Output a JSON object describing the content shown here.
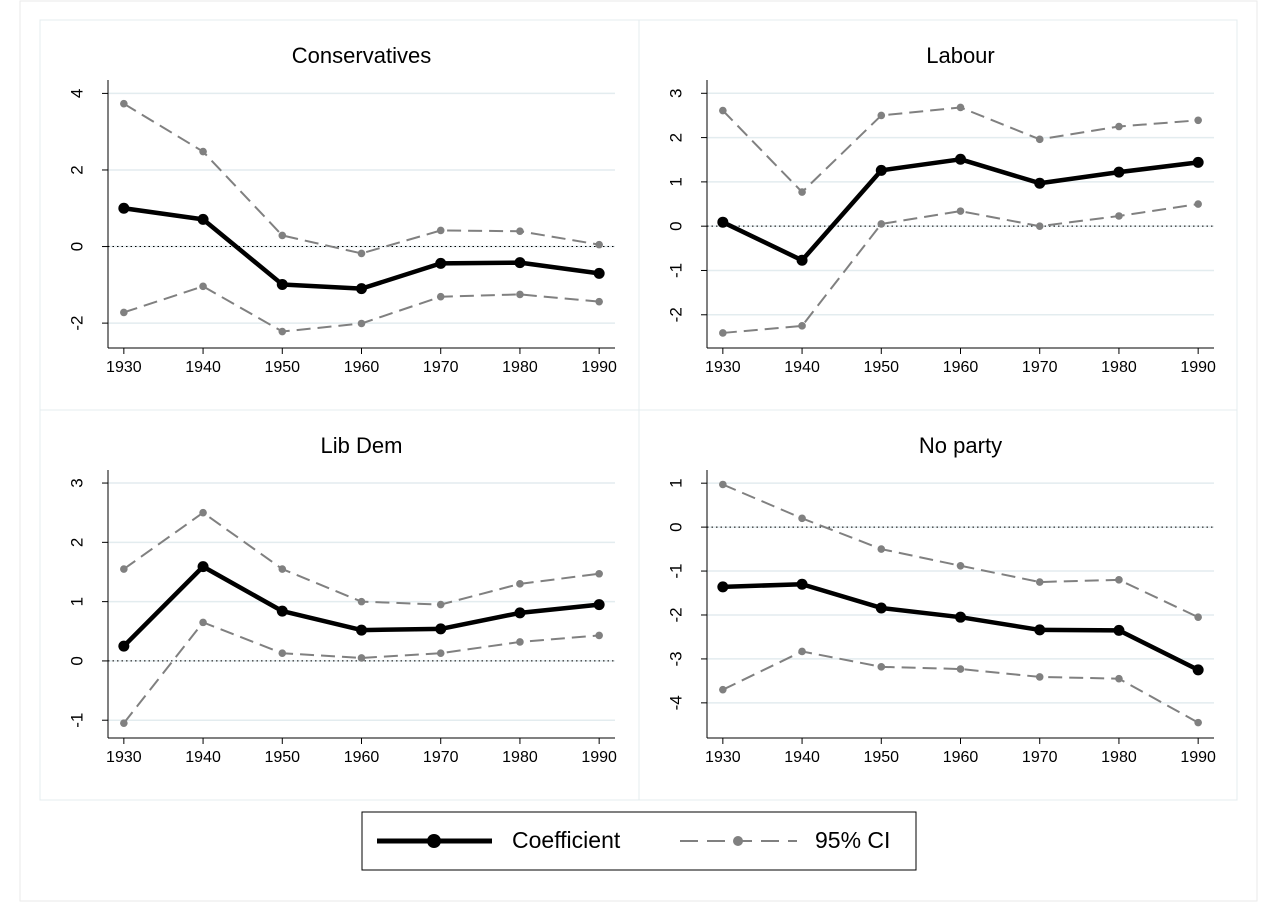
{
  "legend": [
    {
      "name": "Coefficient",
      "color": "#000000"
    },
    {
      "name": "95% CI",
      "color": "#808080"
    }
  ],
  "chart_data": [
    {
      "type": "line",
      "title": "Conservatives",
      "x": [
        1930,
        1940,
        1950,
        1960,
        1970,
        1980,
        1990
      ],
      "xlim": [
        1928,
        1992
      ],
      "xticks": [
        1930,
        1940,
        1950,
        1960,
        1970,
        1980,
        1990
      ],
      "ylim": [
        -2.65,
        4.35
      ],
      "yticks": [
        -2,
        0,
        2,
        4
      ],
      "grid": true,
      "refline": 0,
      "series": [
        {
          "values": [
            1.0,
            0.71,
            -0.99,
            -1.1,
            -0.44,
            -0.42,
            -0.7
          ]
        },
        {
          "upper": [
            3.73,
            2.48,
            0.29,
            -0.18,
            0.42,
            0.4,
            0.05
          ],
          "lower": [
            -1.72,
            -1.04,
            -2.22,
            -2.01,
            -1.31,
            -1.25,
            -1.44
          ]
        }
      ]
    },
    {
      "type": "line",
      "title": "Labour",
      "x": [
        1930,
        1940,
        1950,
        1960,
        1970,
        1980,
        1990
      ],
      "xlim": [
        1928,
        1992
      ],
      "xticks": [
        1930,
        1940,
        1950,
        1960,
        1970,
        1980,
        1990
      ],
      "ylim": [
        -2.75,
        3.3
      ],
      "yticks": [
        -2,
        -1,
        0,
        1,
        2,
        3
      ],
      "grid": true,
      "refline": 0,
      "series": [
        {
          "values": [
            0.09,
            -0.77,
            1.26,
            1.51,
            0.97,
            1.22,
            1.44
          ]
        },
        {
          "upper": [
            2.61,
            0.77,
            2.5,
            2.68,
            1.96,
            2.25,
            2.39
          ],
          "lower": [
            -2.41,
            -2.25,
            0.05,
            0.34,
            0,
            0.23,
            0.5
          ]
        }
      ]
    },
    {
      "type": "line",
      "title": "Lib Dem",
      "x": [
        1930,
        1940,
        1950,
        1960,
        1970,
        1980,
        1990
      ],
      "xlim": [
        1928,
        1992
      ],
      "xticks": [
        1930,
        1940,
        1950,
        1960,
        1970,
        1980,
        1990
      ],
      "ylim": [
        -1.3,
        3.22
      ],
      "yticks": [
        -1,
        0,
        1,
        2,
        3
      ],
      "grid": true,
      "refline": 0,
      "series": [
        {
          "values": [
            0.25,
            1.59,
            0.84,
            0.52,
            0.54,
            0.81,
            0.95
          ]
        },
        {
          "upper": [
            1.55,
            2.5,
            1.55,
            1.0,
            0.95,
            1.3,
            1.47
          ],
          "lower": [
            -1.05,
            0.65,
            0.13,
            0.05,
            0.13,
            0.32,
            0.43
          ]
        }
      ]
    },
    {
      "type": "line",
      "title": "No party",
      "x": [
        1930,
        1940,
        1950,
        1960,
        1970,
        1980,
        1990
      ],
      "xlim": [
        1928,
        1992
      ],
      "xticks": [
        1930,
        1940,
        1950,
        1960,
        1970,
        1980,
        1990
      ],
      "ylim": [
        -4.8,
        1.3
      ],
      "yticks": [
        -4,
        -3,
        -2,
        -1,
        0,
        1
      ],
      "grid": true,
      "refline": 0,
      "series": [
        {
          "values": [
            -1.36,
            -1.3,
            -1.84,
            -2.05,
            -2.34,
            -2.35,
            -3.25
          ]
        },
        {
          "upper": [
            0.97,
            0.2,
            -0.5,
            -0.88,
            -1.25,
            -1.2,
            -2.05
          ],
          "lower": [
            -3.7,
            -2.83,
            -3.18,
            -3.23,
            -3.41,
            -3.45,
            -4.45
          ]
        }
      ]
    }
  ]
}
